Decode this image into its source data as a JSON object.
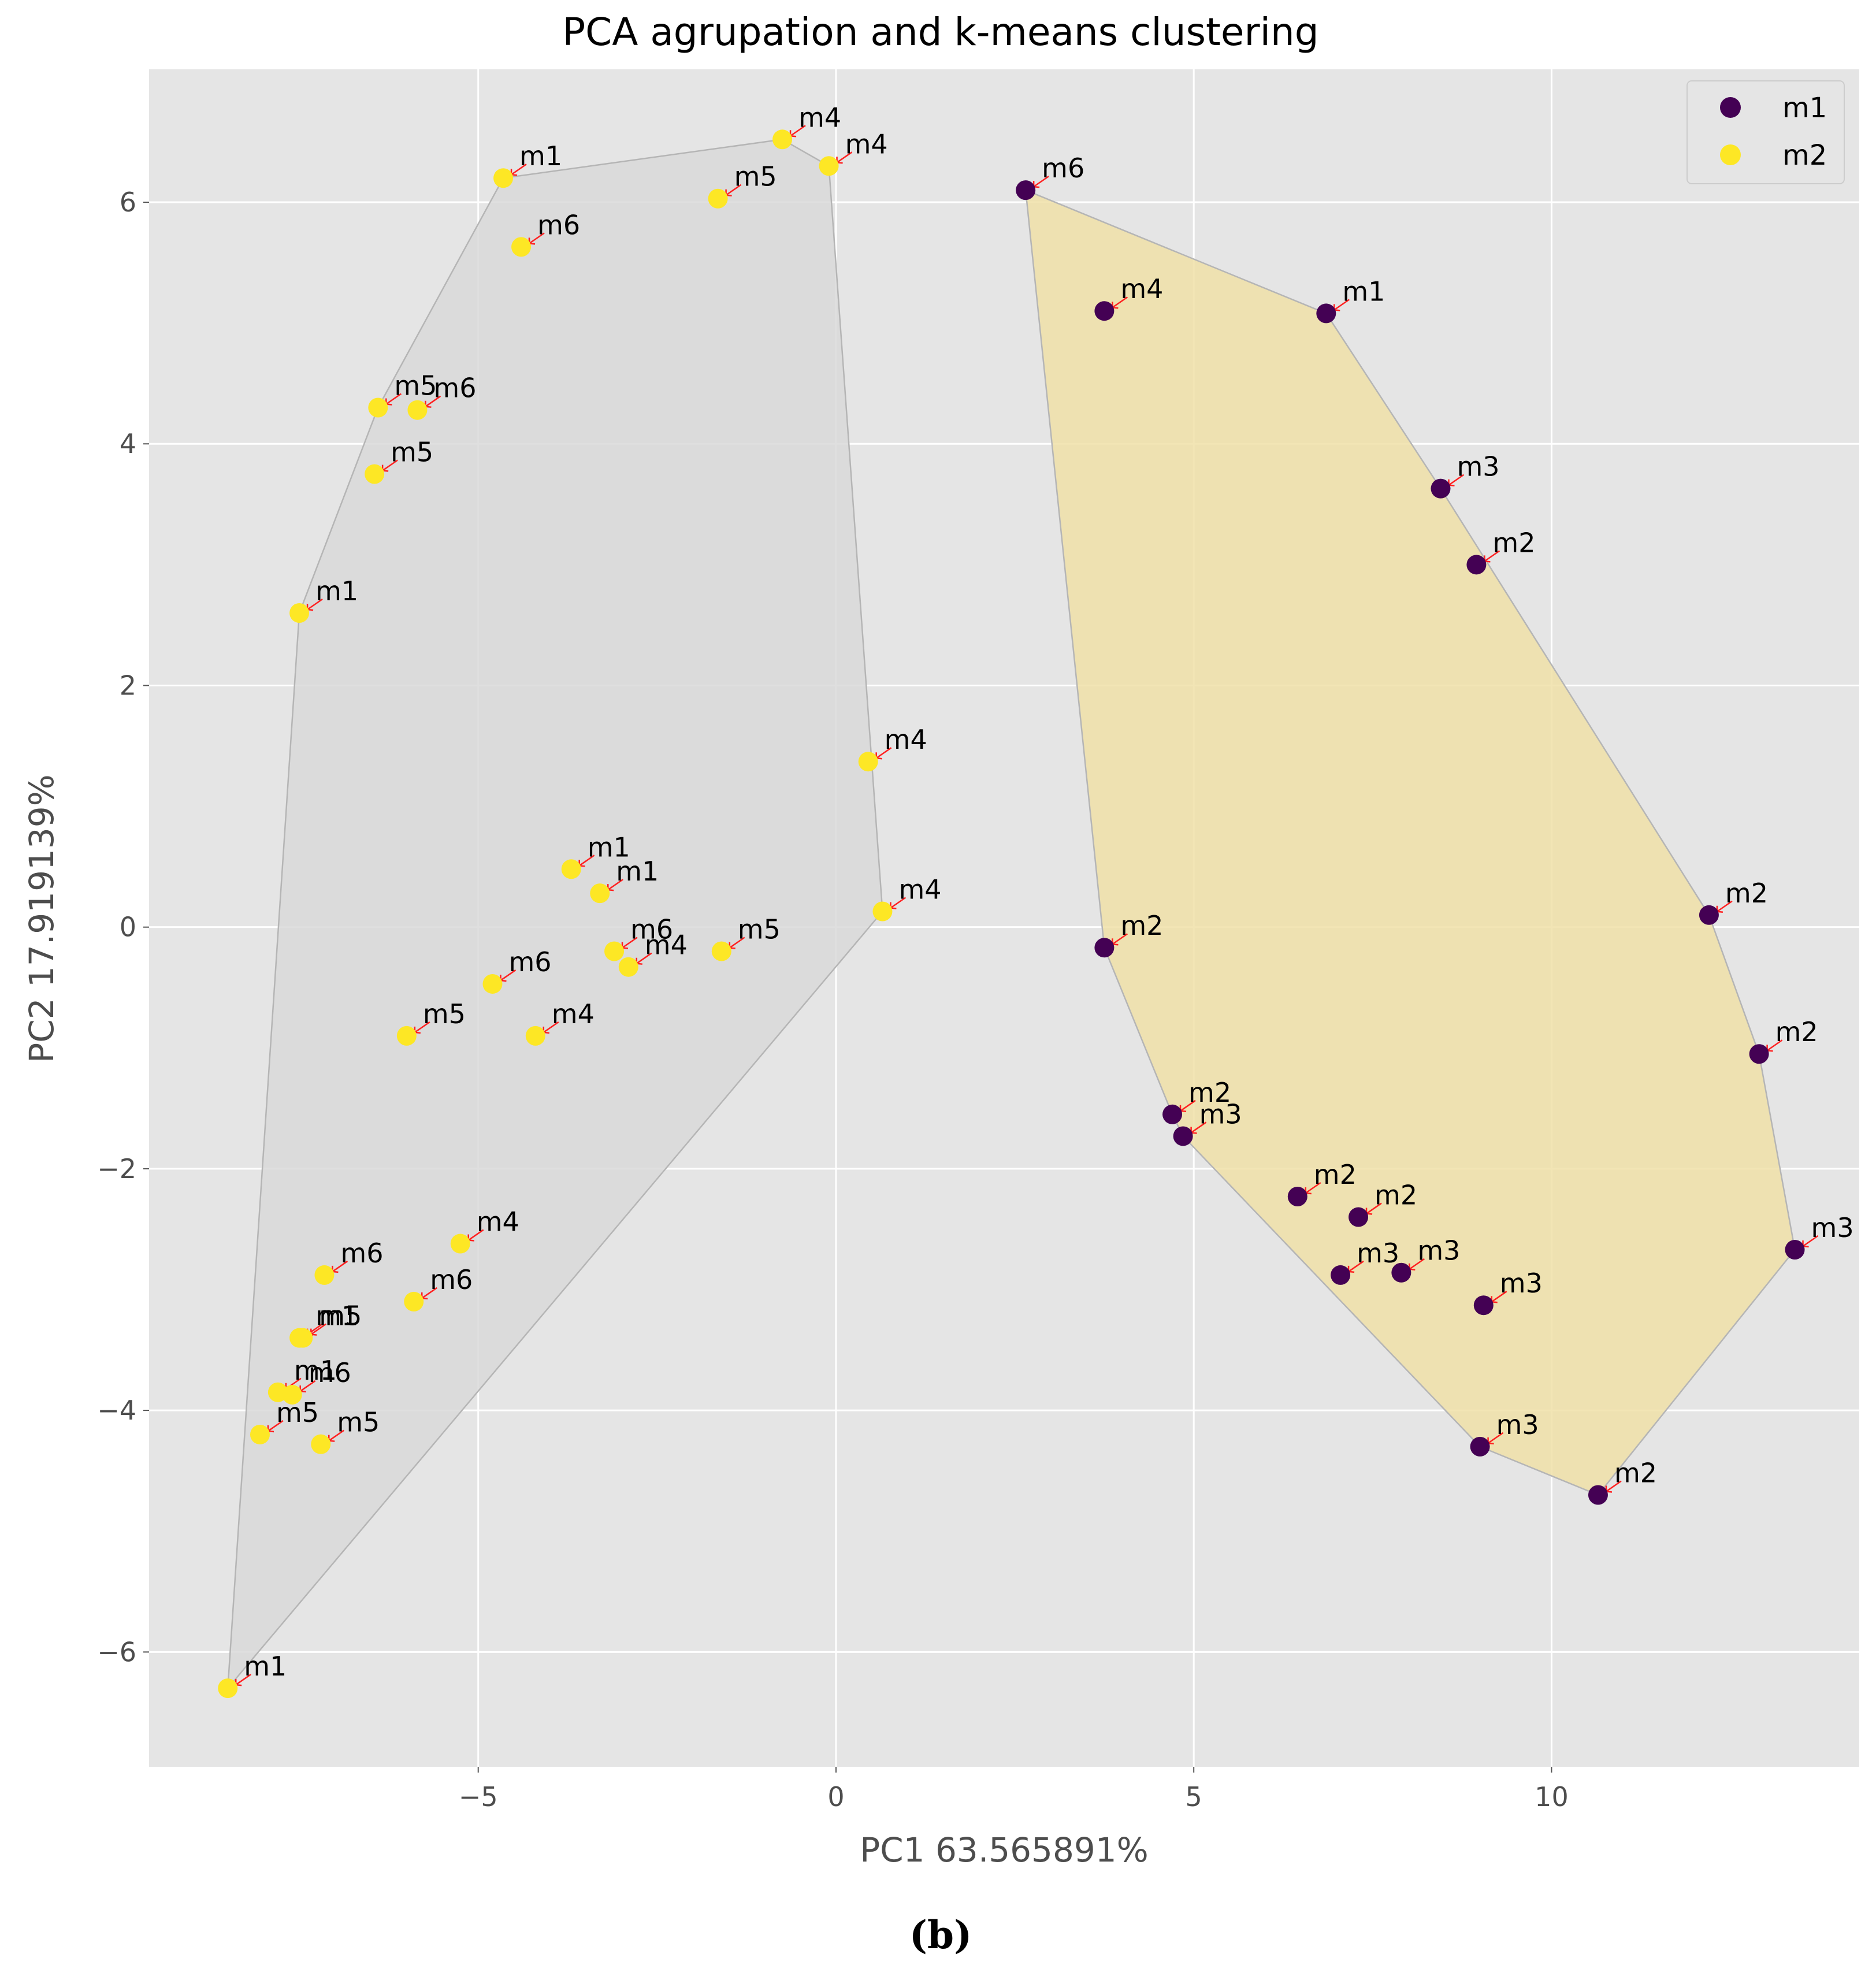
{
  "chart_data": {
    "type": "scatter",
    "title": "PCA agrupation and k-means clustering",
    "xlabel": "PC1 63.565891%",
    "ylabel": "PC2 17.919139%",
    "xlim": [
      -9.6,
      14.3
    ],
    "ylim": [
      -6.95,
      7.1
    ],
    "xticks": [
      -5,
      0,
      5,
      10
    ],
    "yticks": [
      -6,
      -4,
      -2,
      0,
      2,
      4,
      6
    ],
    "tick_labels_x": [
      "−5",
      "0",
      "5",
      "10"
    ],
    "tick_labels_y": [
      "−6",
      "−4",
      "−2",
      "0",
      "2",
      "4",
      "6"
    ],
    "grid": true,
    "legend": {
      "position": "top-right",
      "entries": [
        {
          "name": "m1",
          "color": "#440154"
        },
        {
          "name": "m2",
          "color": "#fde725"
        }
      ]
    },
    "clusters": [
      {
        "name": "m2",
        "color": "#fde725",
        "hull_fill": "#d9d9d9",
        "points": [
          {
            "x": -4.65,
            "y": 6.2,
            "label": "m1"
          },
          {
            "x": -0.75,
            "y": 6.52,
            "label": "m4"
          },
          {
            "x": -0.1,
            "y": 6.3,
            "label": "m4"
          },
          {
            "x": -1.65,
            "y": 6.03,
            "label": "m5"
          },
          {
            "x": -4.4,
            "y": 5.63,
            "label": "m6"
          },
          {
            "x": -6.4,
            "y": 4.3,
            "label": "m5"
          },
          {
            "x": -5.85,
            "y": 4.28,
            "label": "m6"
          },
          {
            "x": -6.45,
            "y": 3.75,
            "label": "m5"
          },
          {
            "x": -7.5,
            "y": 2.6,
            "label": "m1"
          },
          {
            "x": 0.45,
            "y": 1.37,
            "label": "m4"
          },
          {
            "x": -3.7,
            "y": 0.48,
            "label": "m1"
          },
          {
            "x": -3.3,
            "y": 0.28,
            "label": "m1"
          },
          {
            "x": 0.65,
            "y": 0.13,
            "label": "m4"
          },
          {
            "x": -3.1,
            "y": -0.2,
            "label": "m6"
          },
          {
            "x": -2.9,
            "y": -0.33,
            "label": "m4"
          },
          {
            "x": -1.6,
            "y": -0.2,
            "label": "m5"
          },
          {
            "x": -4.8,
            "y": -0.47,
            "label": "m6"
          },
          {
            "x": -6.0,
            "y": -0.9,
            "label": "m5"
          },
          {
            "x": -4.2,
            "y": -0.9,
            "label": "m4"
          },
          {
            "x": -5.25,
            "y": -2.62,
            "label": "m4"
          },
          {
            "x": -7.15,
            "y": -2.88,
            "label": "m6"
          },
          {
            "x": -5.9,
            "y": -3.1,
            "label": "m6"
          },
          {
            "x": -7.5,
            "y": -3.4,
            "label": "m1"
          },
          {
            "x": -7.45,
            "y": -3.4,
            "label": "m5"
          },
          {
            "x": -7.8,
            "y": -3.85,
            "label": "m1"
          },
          {
            "x": -7.6,
            "y": -3.87,
            "label": "m6"
          },
          {
            "x": -8.05,
            "y": -4.2,
            "label": "m5"
          },
          {
            "x": -7.2,
            "y": -4.28,
            "label": "m5"
          },
          {
            "x": -8.5,
            "y": -6.3,
            "label": "m1"
          }
        ]
      },
      {
        "name": "m1",
        "color": "#440154",
        "hull_fill": "#f0e0a8",
        "points": [
          {
            "x": 2.65,
            "y": 6.1,
            "label": "m6"
          },
          {
            "x": 3.75,
            "y": 5.1,
            "label": "m4"
          },
          {
            "x": 6.85,
            "y": 5.08,
            "label": "m1"
          },
          {
            "x": 8.45,
            "y": 3.63,
            "label": "m3"
          },
          {
            "x": 8.95,
            "y": 3.0,
            "label": "m2"
          },
          {
            "x": 12.2,
            "y": 0.1,
            "label": "m2"
          },
          {
            "x": 3.75,
            "y": -0.17,
            "label": "m2"
          },
          {
            "x": 12.9,
            "y": -1.05,
            "label": "m2"
          },
          {
            "x": 4.7,
            "y": -1.55,
            "label": "m2"
          },
          {
            "x": 4.85,
            "y": -1.73,
            "label": "m3"
          },
          {
            "x": 6.45,
            "y": -2.23,
            "label": "m2"
          },
          {
            "x": 7.3,
            "y": -2.4,
            "label": "m2"
          },
          {
            "x": 13.4,
            "y": -2.67,
            "label": "m3"
          },
          {
            "x": 7.05,
            "y": -2.88,
            "label": "m3"
          },
          {
            "x": 7.9,
            "y": -2.86,
            "label": "m3"
          },
          {
            "x": 9.05,
            "y": -3.13,
            "label": "m3"
          },
          {
            "x": 9.0,
            "y": -4.3,
            "label": "m3"
          },
          {
            "x": 10.65,
            "y": -4.7,
            "label": "m2"
          }
        ]
      }
    ]
  },
  "caption": "(b)"
}
